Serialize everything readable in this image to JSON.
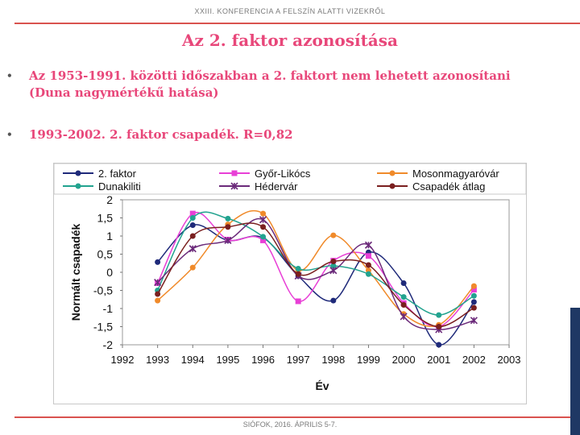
{
  "header": {
    "text": "XXIII. KONFERENCIA A FELSZÍN ALATTI VIZEKRŐL"
  },
  "slide": {
    "title": "Az 2. faktor azonosítása",
    "bullets": [
      {
        "marker": "•",
        "line1": "Az 1953-1991. közötti időszakban a 2. faktort nem lehetett azonosítani",
        "line2": "(Duna nagymértékű hatása)"
      },
      {
        "marker": "•",
        "line1": "1993-2002. 2. faktor csapadék. R=0,82"
      }
    ]
  },
  "footer": {
    "text": "SIÓFOK, 2016. ÁPRILIS 5-7."
  },
  "chart_data": {
    "type": "line",
    "xlabel": "Év",
    "ylabel": "Normált csapadék",
    "xlim": [
      1992,
      2003
    ],
    "ylim": [
      -2,
      2
    ],
    "x_ticks": [
      1992,
      1993,
      1994,
      1995,
      1996,
      1997,
      1998,
      1999,
      2000,
      2001,
      2002,
      2003
    ],
    "y_ticks": [
      2,
      1.5,
      1,
      0.5,
      0,
      -0.5,
      -1,
      -1.5,
      -2
    ],
    "y_tick_labels": [
      "2",
      "1,5",
      "1",
      "0,5",
      "0",
      "-0,5",
      "-1",
      "-1,5",
      "-2"
    ],
    "x": [
      1993,
      1994,
      1995,
      1996,
      1997,
      1998,
      1999,
      2000,
      2001,
      2002
    ],
    "series": [
      {
        "name": "2. faktor",
        "color": "#1f2a7a",
        "marker": "circle",
        "values": [
          0.28,
          1.3,
          0.88,
          0.95,
          -0.1,
          -0.78,
          0.55,
          -0.3,
          -2.0,
          -0.82
        ]
      },
      {
        "name": "Győr-Likócs",
        "color": "#e83fd6",
        "marker": "square",
        "values": [
          -0.3,
          1.62,
          0.9,
          0.88,
          -0.8,
          0.32,
          0.45,
          -0.85,
          -1.5,
          -0.48
        ]
      },
      {
        "name": "Mosonmagyaróvár",
        "color": "#f08a2a",
        "marker": "circle",
        "values": [
          -0.78,
          0.13,
          1.32,
          1.62,
          0.05,
          1.02,
          0.05,
          -1.15,
          -1.45,
          -0.38
        ]
      },
      {
        "name": "Dunakiliti",
        "color": "#22a38f",
        "marker": "circle",
        "values": [
          -0.5,
          1.5,
          1.48,
          0.98,
          0.1,
          0.18,
          -0.05,
          -0.68,
          -1.18,
          -0.65
        ]
      },
      {
        "name": "Hédervár",
        "color": "#6b2a7a",
        "marker": "star",
        "values": [
          -0.28,
          0.65,
          0.88,
          1.45,
          -0.1,
          0.05,
          0.75,
          -1.22,
          -1.58,
          -1.33
        ]
      },
      {
        "name": "Csapadék átlag",
        "color": "#7a1f1f",
        "marker": "circle",
        "values": [
          -0.6,
          1.0,
          1.25,
          1.25,
          -0.05,
          0.3,
          0.2,
          -0.9,
          -1.5,
          -0.98
        ]
      }
    ]
  }
}
